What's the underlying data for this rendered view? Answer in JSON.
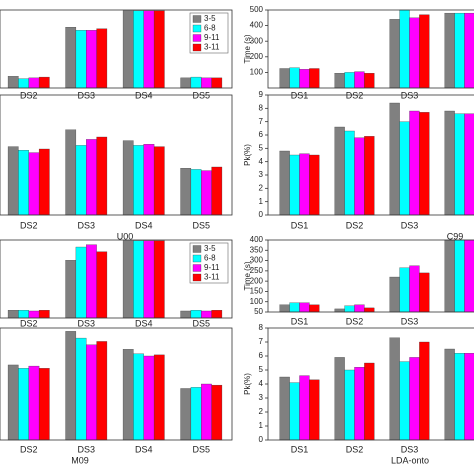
{
  "chart_data": [
    {
      "type": "bar",
      "categories": [
        "DS2",
        "DS3",
        "DS4",
        "DS5"
      ],
      "ylim": [
        0,
        100
      ],
      "legend": "upper right",
      "series": [
        {
          "name": "3-5",
          "color": "#808080",
          "values": [
            15,
            78,
            99,
            13
          ]
        },
        {
          "name": "6-8",
          "color": "#00ffff",
          "values": [
            12,
            74,
            99,
            14
          ]
        },
        {
          "name": "9-11",
          "color": "#ff00ff",
          "values": [
            13,
            74,
            99,
            13
          ]
        },
        {
          "name": "3-11",
          "color": "#ff0000",
          "values": [
            14,
            76,
            99,
            13
          ]
        }
      ]
    },
    {
      "type": "bar",
      "categories": [
        "DS2",
        "DS3",
        "DS4",
        "DS5"
      ],
      "ylim": [
        0,
        100
      ],
      "xlabel": "U00",
      "series": [
        {
          "color": "#808080",
          "values": [
            57,
            71,
            62,
            39
          ]
        },
        {
          "color": "#00ffff",
          "values": [
            54,
            58,
            58,
            38
          ]
        },
        {
          "color": "#ff00ff",
          "values": [
            52,
            63,
            59,
            37
          ]
        },
        {
          "color": "#ff0000",
          "values": [
            55,
            65,
            57,
            40
          ]
        }
      ]
    },
    {
      "type": "bar",
      "categories": [
        "DS2",
        "DS3",
        "DS4",
        "DS5"
      ],
      "ylim": [
        0,
        100
      ],
      "legend": "upper right",
      "series": [
        {
          "name": "3-5",
          "color": "#808080",
          "values": [
            10,
            74,
            99,
            9
          ]
        },
        {
          "name": "6-8",
          "color": "#00ffff",
          "values": [
            10,
            91,
            99,
            10
          ]
        },
        {
          "name": "9-11",
          "color": "#ff00ff",
          "values": [
            9,
            94,
            99,
            9
          ]
        },
        {
          "name": "3-11",
          "color": "#ff0000",
          "values": [
            10,
            85,
            99,
            10
          ]
        }
      ]
    },
    {
      "type": "bar",
      "categories": [
        "DS2",
        "DS3",
        "DS4",
        "DS5"
      ],
      "ylim": [
        0,
        100
      ],
      "xlabel": "M09",
      "series": [
        {
          "color": "#808080",
          "values": [
            67,
            97,
            81,
            46
          ]
        },
        {
          "color": "#00ffff",
          "values": [
            64,
            91,
            77,
            47
          ]
        },
        {
          "color": "#ff00ff",
          "values": [
            66,
            85,
            75,
            50
          ]
        },
        {
          "color": "#ff0000",
          "values": [
            64,
            88,
            76,
            49
          ]
        }
      ]
    },
    {
      "type": "bar",
      "categories": [
        "DS1",
        "DS2",
        "DS3",
        null
      ],
      "ylim": [
        0,
        500
      ],
      "yticks": [
        100,
        200,
        300,
        400,
        500
      ],
      "ylabel": "Time (s)",
      "series": [
        {
          "color": "#808080",
          "values": [
            125,
            95,
            440,
            480
          ]
        },
        {
          "color": "#00ffff",
          "values": [
            130,
            100,
            500,
            480
          ]
        },
        {
          "color": "#ff00ff",
          "values": [
            120,
            105,
            450,
            480
          ]
        },
        {
          "color": "#ff0000",
          "values": [
            125,
            95,
            470,
            480
          ]
        }
      ]
    },
    {
      "type": "bar",
      "categories": [
        "DS1",
        "DS2",
        "DS3",
        null
      ],
      "ylim": [
        0,
        9
      ],
      "yticks": [
        0,
        1,
        2,
        3,
        4,
        5,
        6,
        7,
        8,
        9
      ],
      "ylabel": "Pk(%)",
      "xlabel": "C99",
      "series": [
        {
          "color": "#808080",
          "values": [
            4.8,
            6.6,
            8.4,
            7.8
          ]
        },
        {
          "color": "#00ffff",
          "values": [
            4.5,
            6.3,
            7.0,
            7.6
          ]
        },
        {
          "color": "#ff00ff",
          "values": [
            4.6,
            5.8,
            7.8,
            7.6
          ]
        },
        {
          "color": "#ff0000",
          "values": [
            4.5,
            5.9,
            7.7,
            7.6
          ]
        }
      ]
    },
    {
      "type": "bar",
      "categories": [
        "DS1",
        "DS2",
        "DS3",
        null
      ],
      "ylim": [
        50,
        400
      ],
      "yticks": [
        50,
        100,
        150,
        200,
        250,
        300,
        350,
        400
      ],
      "ylabel": "Time (s)",
      "series": [
        {
          "color": "#808080",
          "values": [
            85,
            65,
            220,
            400
          ]
        },
        {
          "color": "#00ffff",
          "values": [
            95,
            80,
            265,
            400
          ]
        },
        {
          "color": "#ff00ff",
          "values": [
            95,
            85,
            275,
            400
          ]
        },
        {
          "color": "#ff0000",
          "values": [
            85,
            70,
            240,
            400
          ]
        }
      ]
    },
    {
      "type": "bar",
      "categories": [
        "DS1",
        "DS2",
        "DS3",
        null
      ],
      "ylim": [
        0,
        8
      ],
      "yticks": [
        0,
        1,
        2,
        3,
        4,
        5,
        6,
        7,
        8
      ],
      "ylabel": "Pk(%)",
      "xlabel": "LDA-onto",
      "series": [
        {
          "color": "#808080",
          "values": [
            4.5,
            5.9,
            7.3,
            6.5
          ]
        },
        {
          "color": "#00ffff",
          "values": [
            4.1,
            5.0,
            5.6,
            6.2
          ]
        },
        {
          "color": "#ff00ff",
          "values": [
            4.6,
            5.2,
            5.9,
            6.2
          ]
        },
        {
          "color": "#ff0000",
          "values": [
            4.3,
            5.5,
            7.0,
            6.2
          ]
        }
      ]
    }
  ]
}
